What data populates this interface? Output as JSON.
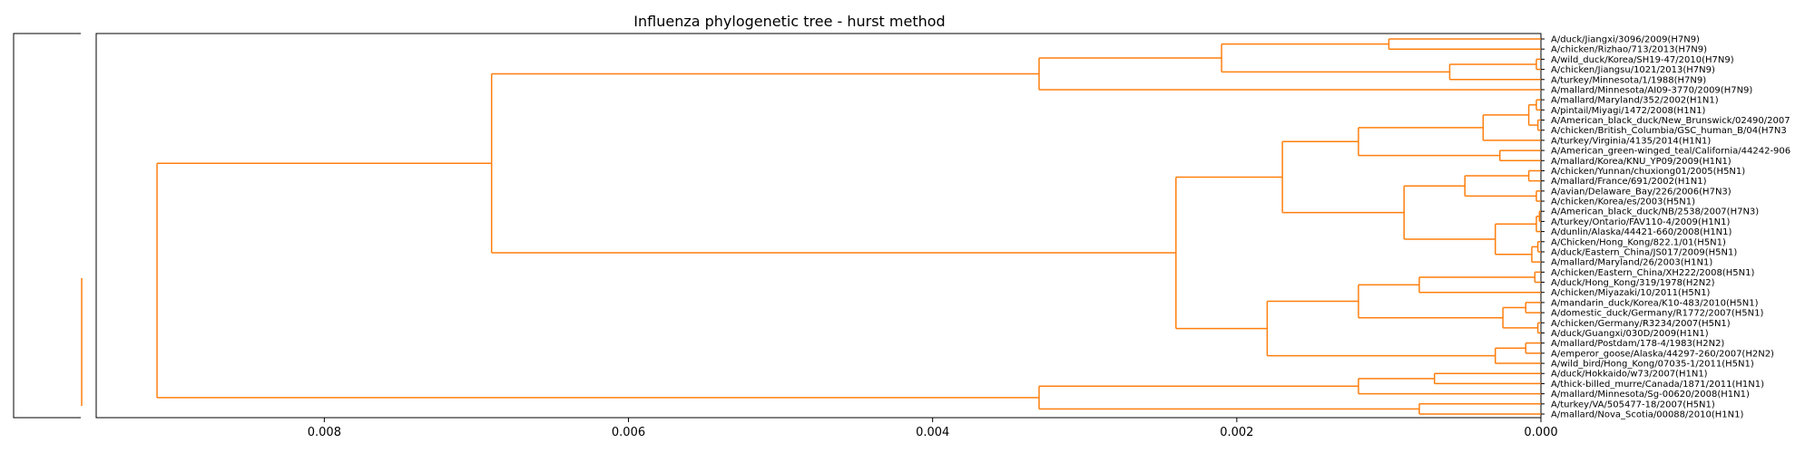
{
  "chart_data": {
    "type": "dendrogram",
    "title": "Influenza phylogenetic tree - hurst method",
    "xlabel": "",
    "ylabel": "",
    "xlim": [
      0.0095,
      0.0
    ],
    "x_ticks": [
      {
        "value": 0.008,
        "label": "0.008"
      },
      {
        "value": 0.006,
        "label": "0.006"
      },
      {
        "value": 0.004,
        "label": "0.004"
      },
      {
        "value": 0.002,
        "label": "0.002"
      },
      {
        "value": 0.0,
        "label": "0.000"
      }
    ],
    "orientation": "leaves on right",
    "colors": {
      "branch": "#ff7f0e",
      "axes": "#000000"
    },
    "leaves": [
      "A/duck/Jiangxi/3096/2009(H7N9)",
      "A/chicken/Rizhao/713/2013(H7N9)",
      "A/wild_duck/Korea/SH19-47/2010(H7N9)",
      "A/chicken/Jiangsu/1021/2013(H7N9)",
      "A/turkey/Minnesota/1/1988(H7N9)",
      "A/mallard/Minnesota/AI09-3770/2009(H7N9)",
      "A/mallard/Maryland/352/2002(H1N1)",
      "A/pintail/Miyagi/1472/2008(H1N1)",
      "A/American_black_duck/New_Brunswick/02490/2007",
      "A/chicken/British_Columbia/GSC_human_B/04(H7N3",
      "A/turkey/Virginia/4135/2014(H1N1)",
      "A/American_green-winged_teal/California/44242-906",
      "A/mallard/Korea/KNU_YP09/2009(H1N1)",
      "A/chicken/Yunnan/chuxiong01/2005(H5N1)",
      "A/mallard/France/691/2002(H1N1)",
      "A/avian/Delaware_Bay/226/2006(H7N3)",
      "A/chicken/Korea/es/2003(H5N1)",
      "A/American_black_duck/NB/2538/2007(H7N3)",
      "A/turkey/Ontario/FAV110-4/2009(H1N1)",
      "A/dunlin/Alaska/44421-660/2008(H1N1)",
      "A/Chicken/Hong_Kong/822.1/01(H5N1)",
      "A/duck/Eastern_China/JS017/2009(H5N1)",
      "A/mallard/Maryland/26/2003(H1N1)",
      "A/chicken/Eastern_China/XH222/2008(H5N1)",
      "A/duck/Hong_Kong/319/1978(H2N2)",
      "A/chicken/Miyazaki/10/2011(H5N1)",
      "A/mandarin_duck/Korea/K10-483/2010(H5N1)",
      "A/domestic_duck/Germany/R1772/2007(H5N1)",
      "A/chicken/Germany/R3234/2007(H5N1)",
      "A/duck/Guangxi/030D/2009(H1N1)",
      "A/mallard/Postdam/178-4/1983(H2N2)",
      "A/emperor_goose/Alaska/44297-260/2007(H2N2)",
      "A/wild_bird/Hong_Kong/07035-1/2011(H5N1)",
      "A/duck/Hokkaido/w73/2007(H1N1)",
      "A/thick-billed_murre/Canada/1871/2011(H1N1)",
      "A/mallard/Minnesota/Sg-00620/2008(H1N1)",
      "A/turkey/VA/505477-18/2007(H5N1)",
      "A/mallard/Nova_Scotia/00088/2010(H1N1)"
    ],
    "tree": {
      "h": 0.0091,
      "c": [
        {
          "h": 0.0069,
          "c": [
            {
              "h": 0.0033,
              "c": [
                {
                  "h": 0.0021,
                  "c": [
                    {
                      "h": 0.001,
                      "c": [
                        {
                          "leaf": 0
                        },
                        {
                          "leaf": 1
                        }
                      ]
                    },
                    {
                      "h": 0.0006,
                      "c": [
                        {
                          "h": 3e-05,
                          "c": [
                            {
                              "leaf": 2
                            },
                            {
                              "leaf": 3
                            }
                          ]
                        },
                        {
                          "leaf": 4
                        }
                      ]
                    }
                  ]
                },
                {
                  "leaf": 5
                }
              ]
            },
            {
              "h": 0.0024,
              "c": [
                {
                  "h": 0.0017,
                  "c": [
                    {
                      "h": 0.0012,
                      "c": [
                        {
                          "h": 0.00038,
                          "c": [
                            {
                              "h": 8e-05,
                              "c": [
                                {
                                  "h": 3e-05,
                                  "c": [
                                    {
                                      "leaf": 6
                                    },
                                    {
                                      "leaf": 7
                                    }
                                  ]
                                },
                                {
                                  "h": 2e-05,
                                  "c": [
                                    {
                                      "leaf": 8
                                    },
                                    {
                                      "leaf": 9
                                    }
                                  ]
                                }
                              ]
                            },
                            {
                              "leaf": 10
                            }
                          ]
                        },
                        {
                          "h": 0.00027,
                          "c": [
                            {
                              "leaf": 11
                            },
                            {
                              "leaf": 12
                            }
                          ]
                        }
                      ]
                    },
                    {
                      "h": 0.0009,
                      "c": [
                        {
                          "h": 0.0005,
                          "c": [
                            {
                              "h": 8e-05,
                              "c": [
                                {
                                  "leaf": 13
                                },
                                {
                                  "leaf": 14
                                }
                              ]
                            },
                            {
                              "h": 3e-05,
                              "c": [
                                {
                                  "leaf": 15
                                },
                                {
                                  "leaf": 16
                                }
                              ]
                            }
                          ]
                        },
                        {
                          "h": 0.0003,
                          "c": [
                            {
                              "h": 3e-05,
                              "c": [
                                {
                                  "h": 1e-05,
                                  "c": [
                                    {
                                      "leaf": 17
                                    },
                                    {
                                      "leaf": 18
                                    }
                                  ]
                                },
                                {
                                  "leaf": 19
                                }
                              ]
                            },
                            {
                              "h": 6e-05,
                              "c": [
                                {
                                  "h": 2e-05,
                                  "c": [
                                    {
                                      "leaf": 20
                                    },
                                    {
                                      "leaf": 21
                                    }
                                  ]
                                },
                                {
                                  "leaf": 22
                                }
                              ]
                            }
                          ]
                        }
                      ]
                    }
                  ]
                },
                {
                  "h": 0.0018,
                  "c": [
                    {
                      "h": 0.0012,
                      "c": [
                        {
                          "h": 0.0008,
                          "c": [
                            {
                              "h": 4e-05,
                              "c": [
                                {
                                  "leaf": 23
                                },
                                {
                                  "leaf": 24
                                }
                              ]
                            },
                            {
                              "leaf": 25
                            }
                          ]
                        },
                        {
                          "h": 0.00025,
                          "c": [
                            {
                              "h": 0.0001,
                              "c": [
                                {
                                  "leaf": 26
                                },
                                {
                                  "leaf": 27
                                }
                              ]
                            },
                            {
                              "h": 2e-05,
                              "c": [
                                {
                                  "leaf": 28
                                },
                                {
                                  "leaf": 29
                                }
                              ]
                            }
                          ]
                        }
                      ]
                    },
                    {
                      "h": 0.0003,
                      "c": [
                        {
                          "h": 0.0001,
                          "c": [
                            {
                              "leaf": 30
                            },
                            {
                              "leaf": 31
                            }
                          ]
                        },
                        {
                          "leaf": 32
                        }
                      ]
                    }
                  ]
                }
              ]
            }
          ]
        },
        {
          "h": 0.0033,
          "c": [
            {
              "h": 0.0012,
              "c": [
                {
                  "h": 0.0007,
                  "c": [
                    {
                      "leaf": 33
                    },
                    {
                      "leaf": 34
                    }
                  ]
                },
                {
                  "leaf": 35
                }
              ]
            },
            {
              "h": 0.0008,
              "c": [
                {
                  "leaf": 36
                },
                {
                  "leaf": 37
                }
              ]
            }
          ]
        }
      ]
    }
  }
}
